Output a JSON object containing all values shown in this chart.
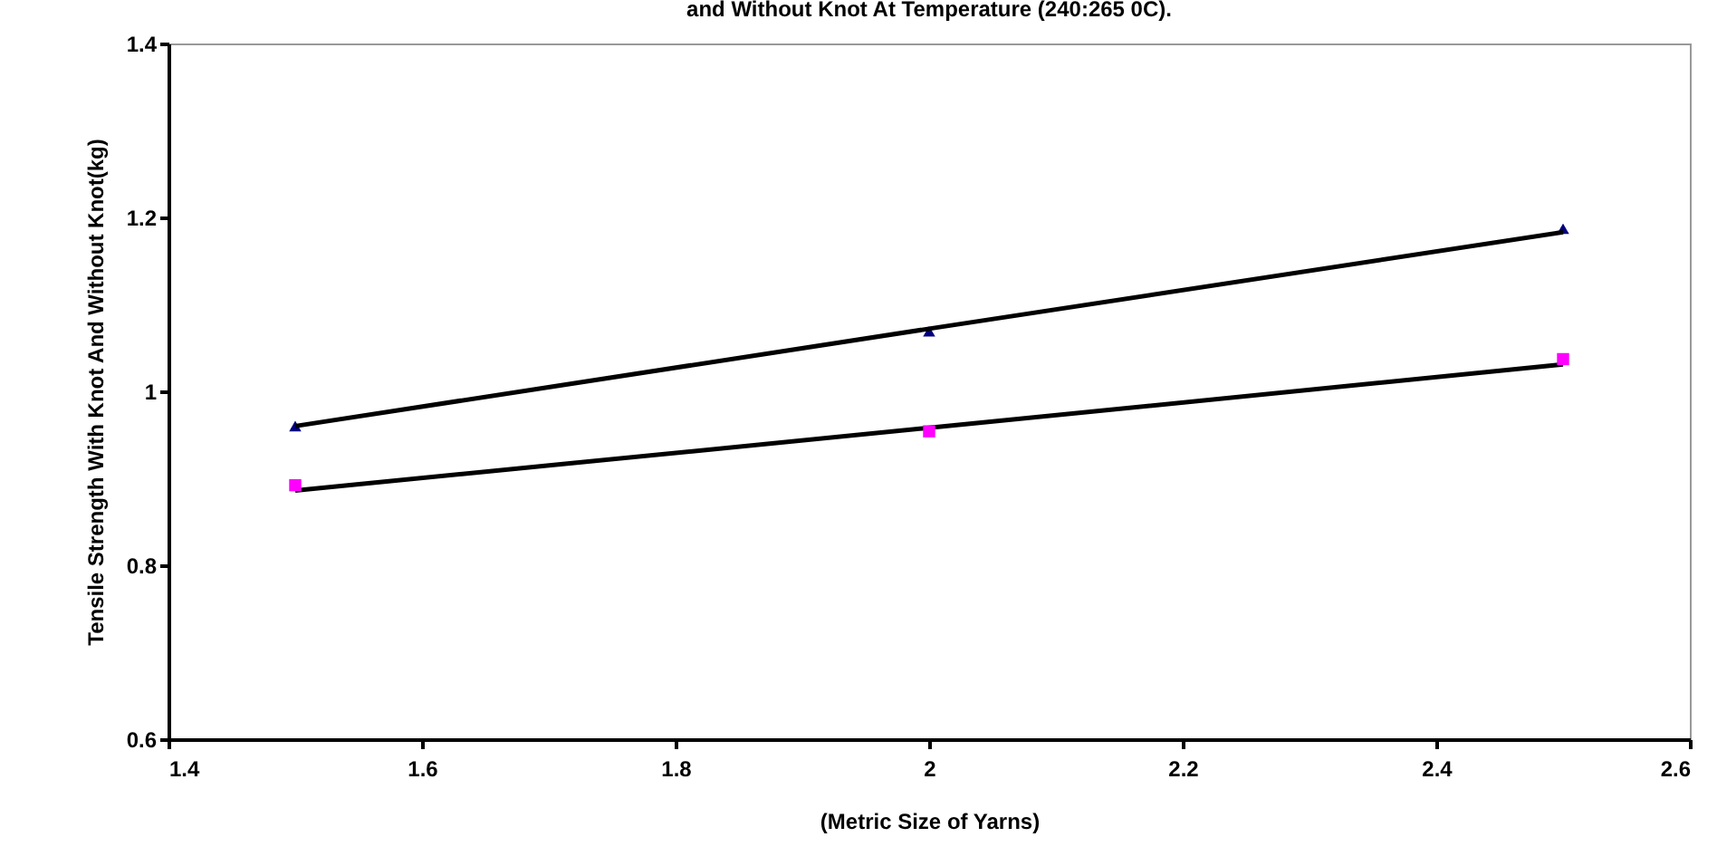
{
  "chart_data": {
    "type": "scatter",
    "title": "and Without  Knot At Temperature (240:265 0C).",
    "xlabel": "(Metric Size of Yarns)",
    "ylabel": "Tensile  Strength With Knot And Without  Knot(kg)",
    "x": [
      1.5,
      2,
      2.5
    ],
    "series": [
      {
        "color": "#000080",
        "marker": "triangle",
        "values": [
          0.96,
          1.069,
          1.187
        ]
      },
      {
        "color": "#ff00ff",
        "marker": "square",
        "values": [
          0.892,
          0.954,
          1.037
        ]
      },
      {
        "type": "line",
        "color": "#000000",
        "values": [
          0.96,
          1.072,
          1.183
        ]
      },
      {
        "type": "line",
        "color": "#000000",
        "values": [
          0.886,
          0.958,
          1.031
        ]
      }
    ],
    "xlim": [
      1.4,
      2.6
    ],
    "xticks": [
      {
        "value": 1.4,
        "label": "1.4"
      },
      {
        "value": 1.6,
        "label": "1.6"
      },
      {
        "value": 1.8,
        "label": "1.8"
      },
      {
        "value": 2,
        "label": "2"
      },
      {
        "value": 2.2,
        "label": "2.2"
      },
      {
        "value": 2.4,
        "label": "2.4"
      },
      {
        "value": 2.6,
        "label": "2.6"
      }
    ],
    "ylim": [
      0.6,
      1.4
    ],
    "yticks": [
      {
        "value": 0.6,
        "label": "0.6"
      },
      {
        "value": 0.8,
        "label": "0.8"
      },
      {
        "value": 1,
        "label": "1"
      },
      {
        "value": 1.2,
        "label": "1.2"
      },
      {
        "value": 1.4,
        "label": "1.4"
      }
    ],
    "grid": false,
    "line_style": "solid"
  }
}
